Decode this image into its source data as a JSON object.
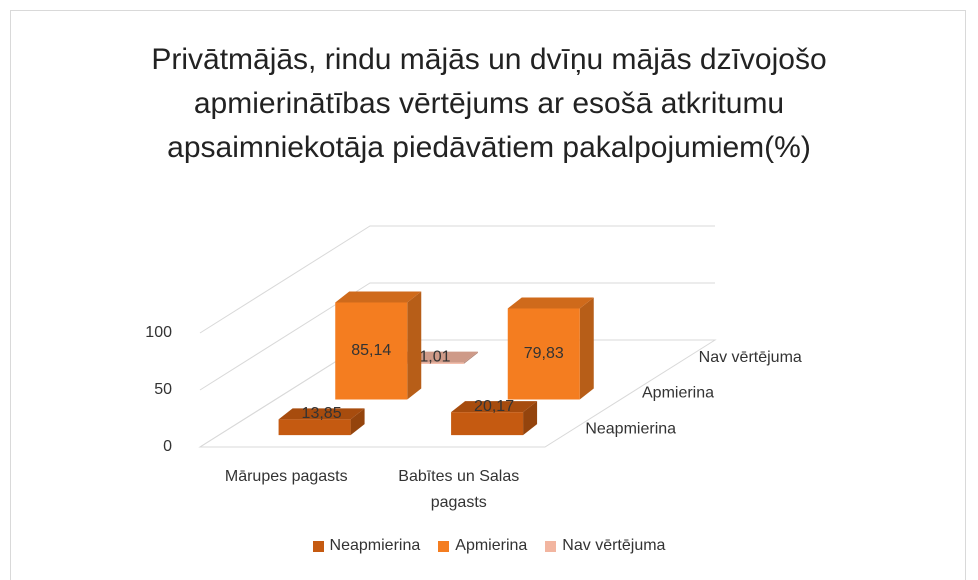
{
  "chart_data": {
    "type": "bar3d",
    "title": "Privātmājās, rindu mājās un dvīņu mājās dzīvojošo apmierinātības vērtējums ar esošā atkritumu apsaimniekotāja piedāvātiem pakalpojumiem(%)",
    "categories": [
      "Mārupes pagasts",
      "Babītes un Salas pagasts"
    ],
    "series": [
      {
        "name": "Neapmierina",
        "color": "#c55a11",
        "values": [
          13.85,
          20.17
        ],
        "value_labels": [
          "13,85",
          "20,17"
        ]
      },
      {
        "name": "Apmierina",
        "color": "#f47d20",
        "values": [
          85.14,
          79.83
        ],
        "value_labels": [
          "85,14",
          "79,83"
        ]
      },
      {
        "name": "Nav vērtējuma",
        "color": "#f2b5a0",
        "values": [
          1.01,
          null
        ],
        "value_labels": [
          "1,01",
          null
        ]
      }
    ],
    "ylim": [
      0,
      100
    ],
    "yticks": [
      0,
      50,
      100
    ],
    "grid": true,
    "legend": "bottom"
  }
}
